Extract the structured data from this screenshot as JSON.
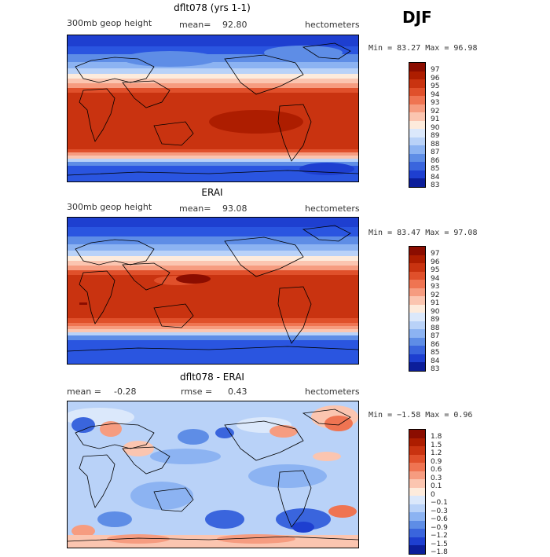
{
  "season": "DJF",
  "panels": [
    {
      "title": "dflt078 (yrs 1-1)",
      "variable": "300mb geop height",
      "mean_label": "mean=",
      "mean_value": "92.80",
      "units": "hectometers",
      "minmax": "Min =  83.27 Max =  96.98",
      "legend_levels": [
        "97",
        "96",
        "95",
        "94",
        "93",
        "92",
        "91",
        "90",
        "89",
        "88",
        "87",
        "86",
        "85",
        "84",
        "83"
      ],
      "legend_colors": [
        "#8b0d00",
        "#ad1d00",
        "#c93310",
        "#e0502b",
        "#ef7452",
        "#f69c80",
        "#fbc5b0",
        "#fdebdc",
        "#dbe8fb",
        "#b9d2f8",
        "#8cb3f2",
        "#5e8de6",
        "#3a65dd",
        "#1e3fd0",
        "#0c1e9a"
      ]
    },
    {
      "title": "ERAI",
      "variable": "300mb geop height",
      "mean_label": "mean=",
      "mean_value": "93.08",
      "units": "hectometers",
      "minmax": "Min =  83.47 Max =  97.08",
      "legend_levels": [
        "97",
        "96",
        "95",
        "94",
        "93",
        "92",
        "91",
        "90",
        "89",
        "88",
        "87",
        "86",
        "85",
        "84",
        "83"
      ],
      "legend_colors": [
        "#8b0d00",
        "#ad1d00",
        "#c93310",
        "#e0502b",
        "#ef7452",
        "#f69c80",
        "#fbc5b0",
        "#fdebdc",
        "#dbe8fb",
        "#b9d2f8",
        "#8cb3f2",
        "#5e8de6",
        "#3a65dd",
        "#1e3fd0",
        "#0c1e9a"
      ]
    },
    {
      "title": "dflt078 - ERAI",
      "mean_label": "mean =",
      "mean_value": "-0.28",
      "rmse_label": "rmse =",
      "rmse_value": "0.43",
      "units": "hectometers",
      "minmax": "Min =  −1.58 Max =   0.96",
      "legend_levels": [
        "1.8",
        "1.5",
        "1.2",
        "0.9",
        "0.6",
        "0.3",
        "0.1",
        "0",
        "−0.1",
        "−0.3",
        "−0.6",
        "−0.9",
        "−1.2",
        "−1.5",
        "−1.8"
      ],
      "legend_colors": [
        "#8b0d00",
        "#ad1d00",
        "#c93310",
        "#e0502b",
        "#ef7452",
        "#f69c80",
        "#fbc5b0",
        "#fdebdc",
        "#dbe8fb",
        "#b9d2f8",
        "#8cb3f2",
        "#5e8de6",
        "#3a65dd",
        "#1e3fd0",
        "#0c1e9a"
      ]
    }
  ]
}
